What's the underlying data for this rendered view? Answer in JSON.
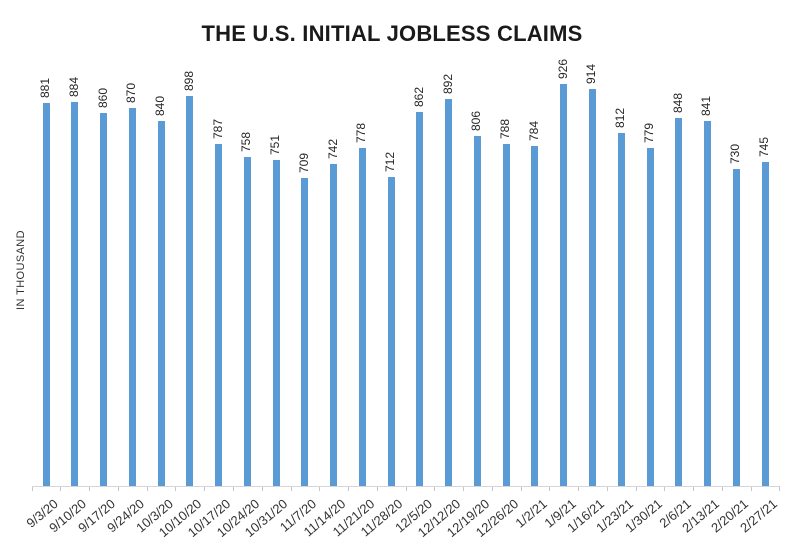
{
  "chart_data": {
    "type": "bar",
    "title": "THE U.S. INITIAL JOBLESS CLAIMS",
    "ylabel": "IN THOUSAND",
    "xlabel": "",
    "categories": [
      "9/3/20",
      "9/10/20",
      "9/17/20",
      "9/24/20",
      "10/3/20",
      "10/10/20",
      "10/17/20",
      "10/24/20",
      "10/31/20",
      "11/7/20",
      "11/14/20",
      "11/21/20",
      "11/28/20",
      "12/5/20",
      "12/12/20",
      "12/19/20",
      "12/26/20",
      "1/2/21",
      "1/9/21",
      "1/16/21",
      "1/23/21",
      "1/30/21",
      "2/6/21",
      "2/13/21",
      "2/20/21",
      "2/27/21"
    ],
    "values": [
      881,
      884,
      860,
      870,
      840,
      898,
      787,
      758,
      751,
      709,
      742,
      778,
      712,
      862,
      892,
      806,
      788,
      784,
      926,
      914,
      812,
      779,
      848,
      841,
      730,
      745
    ],
    "unit": "thousand",
    "ylim": [
      0,
      1000
    ],
    "grid": false,
    "legend": false,
    "value_label_style": "rotated-90-above-bar",
    "x_label_style": "rotated-diagonal",
    "colors": {
      "bar": "#5B9BD5",
      "axis_line": "#D6D6D6",
      "tick": "#C6C6C6",
      "title": "#1A1A1A",
      "label": "#262626"
    }
  }
}
